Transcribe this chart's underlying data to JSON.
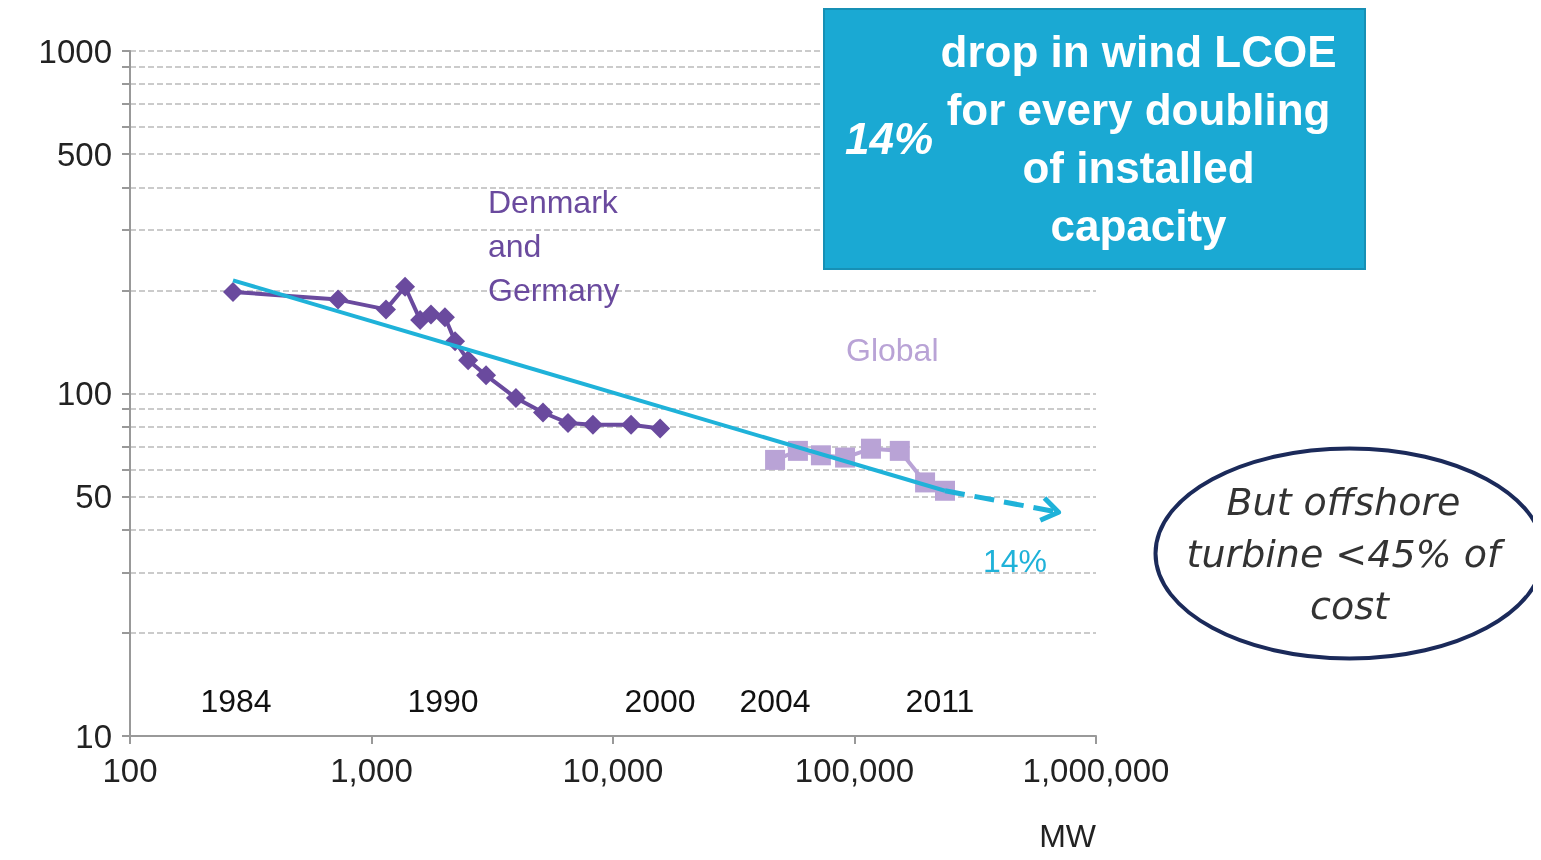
{
  "chart_data": {
    "type": "line",
    "xlabel": "MW",
    "log": "xy",
    "xlim": [
      100,
      1000000
    ],
    "xticks": [
      {
        "value": 100,
        "label": "100"
      },
      {
        "value": 1000,
        "label": "1,000"
      },
      {
        "value": 10000,
        "label": "10,000"
      },
      {
        "value": 100000,
        "label": "100,000"
      },
      {
        "value": 1000000,
        "label": "1,000,000"
      }
    ],
    "ylim": [
      10,
      1000
    ],
    "yticks": [
      10,
      {
        "value": 20,
        "label": null
      },
      {
        "value": 30,
        "label": null
      },
      {
        "value": 40,
        "label": null
      },
      50,
      {
        "value": 60,
        "label": null
      },
      {
        "value": 70,
        "label": null
      },
      {
        "value": 80,
        "label": null
      },
      {
        "value": 90,
        "label": null
      },
      100,
      {
        "value": 200,
        "label": null
      },
      {
        "value": 300,
        "label": null
      },
      {
        "value": 400,
        "label": null
      },
      500,
      {
        "value": 600,
        "label": null
      },
      {
        "value": 700,
        "label": null
      },
      {
        "value": 800,
        "label": null
      },
      {
        "value": 900,
        "label": null
      },
      1000
    ],
    "grid": "y",
    "legend": false,
    "series": [
      {
        "name": "Denmark and Germany",
        "color": "#6a4a9e",
        "marker": "diamond",
        "x": [
          267,
          727,
          1148,
          1377,
          1590,
          1763,
          2014,
          2218,
          2512,
          2982,
          3964,
          5130,
          6510,
          8260,
          11880,
          15670
        ],
        "values": [
          198,
          188,
          176,
          205,
          164,
          170,
          167,
          142,
          125,
          113,
          97,
          88,
          82,
          81,
          81,
          79
        ]
      },
      {
        "name": "Global",
        "color": "#b9a3d6",
        "marker": "square",
        "x": [
          46900,
          58300,
          72600,
          91400,
          117000,
          154000,
          196000,
          237000
        ],
        "values": [
          64,
          68,
          66,
          65,
          69,
          68,
          55,
          52
        ]
      },
      {
        "color": "#1fb2d9",
        "marker": "none",
        "line_style": "solid",
        "x": [
          267,
          237000
        ],
        "values": [
          214,
          52
        ]
      },
      {
        "color": "#1fb2d9",
        "marker": "none",
        "line_style": "dashed",
        "x": [
          237000,
          700000
        ],
        "values": [
          52,
          45
        ]
      }
    ],
    "annotations": [
      "1984",
      "1990",
      "2000",
      "2004",
      "2011",
      "14%",
      "14% drop in wind LCOE for every doubling of installed capacity",
      "But offshore turbine <45% of cost"
    ]
  }
}
